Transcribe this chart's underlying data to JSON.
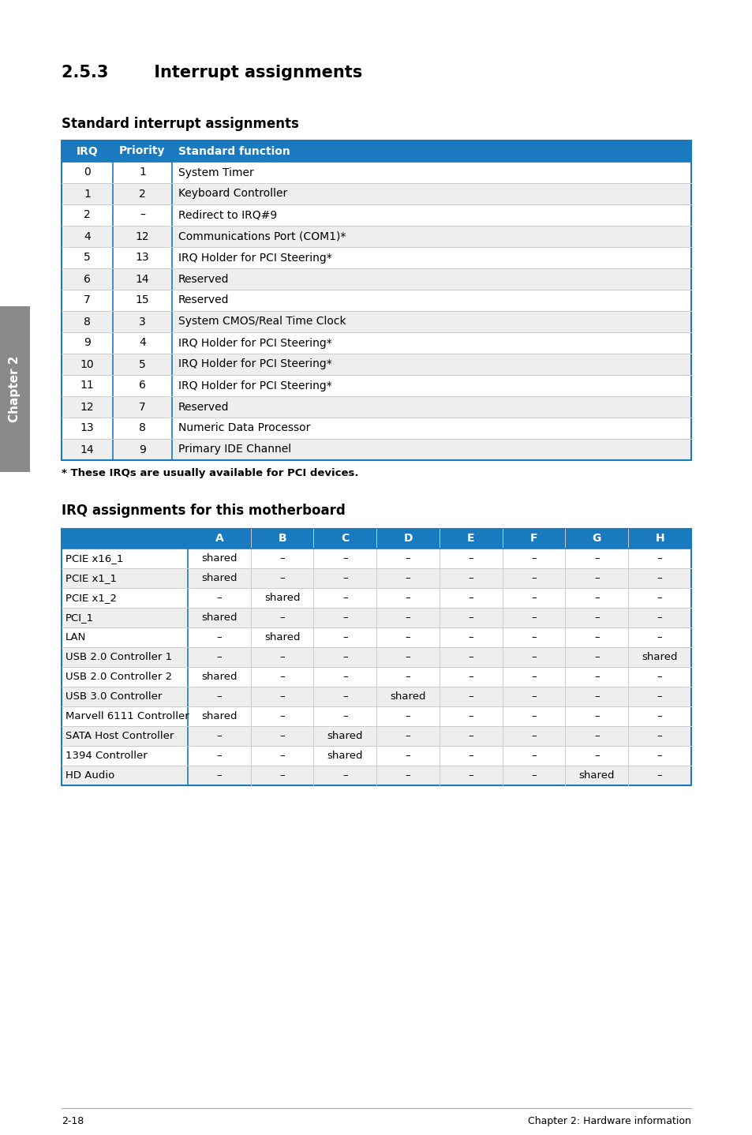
{
  "title_section": "2.5.3",
  "title_text": "Interrupt assignments",
  "subtitle1": "Standard interrupt assignments",
  "header_color": "#1a7abf",
  "header_text_color": "#ffffff",
  "row_color_odd": "#ffffff",
  "row_color_even": "#eeeeee",
  "border_color": "#1a7abf",
  "grid_color": "#cccccc",
  "table1_headers": [
    "IRQ",
    "Priority",
    "Standard function"
  ],
  "table1_data": [
    [
      "0",
      "1",
      "System Timer"
    ],
    [
      "1",
      "2",
      "Keyboard Controller"
    ],
    [
      "2",
      "–",
      "Redirect to IRQ#9"
    ],
    [
      "4",
      "12",
      "Communications Port (COM1)*"
    ],
    [
      "5",
      "13",
      "IRQ Holder for PCI Steering*"
    ],
    [
      "6",
      "14",
      "Reserved"
    ],
    [
      "7",
      "15",
      "Reserved"
    ],
    [
      "8",
      "3",
      "System CMOS/Real Time Clock"
    ],
    [
      "9",
      "4",
      "IRQ Holder for PCI Steering*"
    ],
    [
      "10",
      "5",
      "IRQ Holder for PCI Steering*"
    ],
    [
      "11",
      "6",
      "IRQ Holder for PCI Steering*"
    ],
    [
      "12",
      "7",
      "Reserved"
    ],
    [
      "13",
      "8",
      "Numeric Data Processor"
    ],
    [
      "14",
      "9",
      "Primary IDE Channel"
    ]
  ],
  "footnote": "* These IRQs are usually available for PCI devices.",
  "subtitle2": "IRQ assignments for this motherboard",
  "table2_headers": [
    "",
    "A",
    "B",
    "C",
    "D",
    "E",
    "F",
    "G",
    "H"
  ],
  "table2_data": [
    [
      "PCIE x16_1",
      "shared",
      "–",
      "–",
      "–",
      "–",
      "–",
      "–",
      "–"
    ],
    [
      "PCIE x1_1",
      "shared",
      "–",
      "–",
      "–",
      "–",
      "–",
      "–",
      "–"
    ],
    [
      "PCIE x1_2",
      "–",
      "shared",
      "–",
      "–",
      "–",
      "–",
      "–",
      "–"
    ],
    [
      "PCI_1",
      "shared",
      "–",
      "–",
      "–",
      "–",
      "–",
      "–",
      "–"
    ],
    [
      "LAN",
      "–",
      "shared",
      "–",
      "–",
      "–",
      "–",
      "–",
      "–"
    ],
    [
      "USB 2.0 Controller 1",
      "–",
      "–",
      "–",
      "–",
      "–",
      "–",
      "–",
      "shared"
    ],
    [
      "USB 2.0 Controller 2",
      "shared",
      "–",
      "–",
      "–",
      "–",
      "–",
      "–",
      "–"
    ],
    [
      "USB 3.0 Controller",
      "–",
      "–",
      "–",
      "shared",
      "–",
      "–",
      "–",
      "–"
    ],
    [
      "Marvell 6111 Controller",
      "shared",
      "–",
      "–",
      "–",
      "–",
      "–",
      "–",
      "–"
    ],
    [
      "SATA Host Controller",
      "–",
      "–",
      "shared",
      "–",
      "–",
      "–",
      "–",
      "–"
    ],
    [
      "1394 Controller",
      "–",
      "–",
      "shared",
      "–",
      "–",
      "–",
      "–",
      "–"
    ],
    [
      "HD Audio",
      "–",
      "–",
      "–",
      "–",
      "–",
      "–",
      "shared",
      "–"
    ]
  ],
  "footer_left": "2-18",
  "footer_right": "Chapter 2: Hardware information",
  "sidebar_text": "Chapter 2",
  "sidebar_color": "#8a8a8a",
  "page_bg": "#ffffff"
}
